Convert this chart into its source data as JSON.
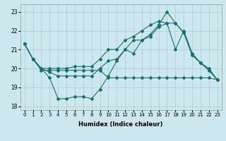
{
  "xlabel": "Humidex (Indice chaleur)",
  "background_color": "#cce8ee",
  "grid_color": "#aacccc",
  "line_color": "#1a7070",
  "xlim": [
    -0.5,
    23.5
  ],
  "ylim": [
    17.8,
    23.4
  ],
  "yticks": [
    18,
    19,
    20,
    21,
    22,
    23
  ],
  "xticks": [
    0,
    1,
    2,
    3,
    4,
    5,
    6,
    7,
    8,
    9,
    10,
    11,
    12,
    13,
    14,
    15,
    16,
    17,
    18,
    19,
    20,
    21,
    22,
    23
  ],
  "series": [
    [
      21.3,
      20.5,
      19.9,
      19.9,
      19.9,
      19.9,
      19.9,
      19.9,
      19.9,
      19.9,
      19.5,
      19.5,
      19.5,
      19.5,
      19.5,
      19.5,
      19.5,
      19.5,
      19.5,
      19.5,
      19.5,
      19.5,
      19.5,
      19.4
    ],
    [
      21.3,
      20.5,
      20.0,
      19.5,
      18.4,
      18.4,
      18.5,
      18.5,
      18.4,
      18.9,
      19.6,
      20.4,
      21.0,
      20.8,
      21.5,
      21.8,
      22.3,
      23.0,
      22.4,
      21.9,
      20.7,
      20.3,
      19.9,
      19.4
    ],
    [
      21.3,
      20.5,
      20.0,
      19.8,
      19.6,
      19.6,
      19.6,
      19.6,
      19.6,
      20.0,
      20.4,
      20.5,
      21.0,
      21.5,
      21.5,
      21.7,
      22.2,
      22.4,
      22.4,
      21.9,
      20.7,
      20.3,
      19.9,
      19.4
    ],
    [
      21.3,
      20.5,
      20.0,
      20.0,
      20.0,
      20.0,
      20.1,
      20.1,
      20.1,
      20.5,
      21.0,
      21.0,
      21.5,
      21.7,
      22.0,
      22.3,
      22.5,
      22.4,
      21.0,
      22.0,
      20.8,
      20.3,
      20.0,
      19.4
    ]
  ]
}
